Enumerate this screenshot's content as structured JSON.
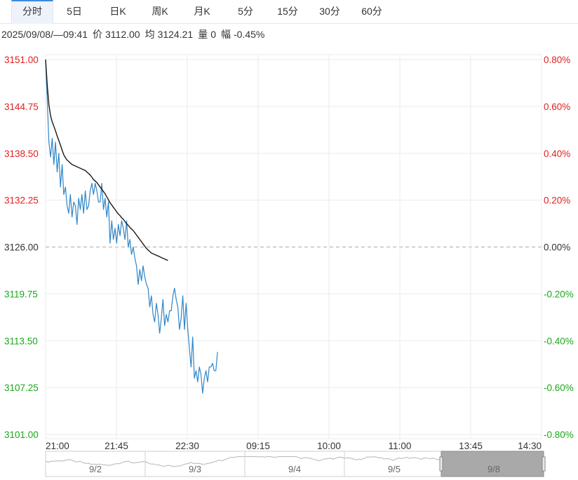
{
  "tabs": [
    {
      "label": "分时",
      "active": true
    },
    {
      "label": "5日",
      "active": false
    },
    {
      "label": "日K",
      "active": false
    },
    {
      "label": "周K",
      "active": false
    },
    {
      "label": "月K",
      "active": false
    },
    {
      "label": "5分",
      "active": false
    },
    {
      "label": "15分",
      "active": false
    },
    {
      "label": "30分",
      "active": false
    },
    {
      "label": "60分",
      "active": false
    }
  ],
  "quote": {
    "datetime": "2025/09/08/—09:41",
    "price_label": "价",
    "price": "3112.00",
    "avg_label": "均",
    "avg": "3124.21",
    "volume_label": "量",
    "volume": "0",
    "change_label": "幅",
    "change": "-0.45%"
  },
  "colors": {
    "up": "#e02020",
    "down": "#1aa81a",
    "neutral": "#333333",
    "price_line": "#2f86c8",
    "avg_line": "#1a1a1a",
    "grid": "#ebebeb",
    "baseline": "#aaaaaa"
  },
  "chart_data": {
    "type": "line",
    "ylim": [
      3101.0,
      3151.0
    ],
    "prev_close": 3126.0,
    "y_ticks": [
      "3151.00",
      "3144.75",
      "3138.50",
      "3132.25",
      "3126.00",
      "3119.75",
      "3113.50",
      "3107.25",
      "3101.00"
    ],
    "y2_ticks": [
      "0.80%",
      "0.60%",
      "0.40%",
      "0.20%",
      "0.00%",
      "-0.20%",
      "-0.40%",
      "-0.60%",
      "-0.80%"
    ],
    "x_ticks": [
      "21:00",
      "21:45",
      "22:30",
      "09:15",
      "10:00",
      "11:00",
      "13:45",
      "14:30"
    ],
    "series": [
      {
        "values": [
          3151.0,
          3145.5,
          3140.0,
          3138.0,
          3140.5,
          3137.0,
          3140.0,
          3136.0,
          3138.5,
          3134.0,
          3137.0,
          3133.0,
          3134.0,
          3131.5,
          3130.5,
          3133.0,
          3130.0,
          3132.0,
          3131.5,
          3129.0,
          3132.5,
          3131.0,
          3133.0,
          3130.5,
          3133.5,
          3131.0,
          3131.5,
          3133.5,
          3134.5,
          3133.0,
          3134.5,
          3133.5,
          3132.0,
          3132.0,
          3134.5,
          3131.0,
          3132.5,
          3130.0,
          3132.0,
          3126.5,
          3129.5,
          3127.0,
          3128.5,
          3126.5,
          3129.0,
          3127.5,
          3129.5,
          3128.5,
          3127.0,
          3129.5,
          3126.0,
          3127.0,
          3125.0,
          3126.0,
          3124.5,
          3123.5,
          3121.0,
          3123.0,
          3121.5,
          3123.5,
          3122.0,
          3121.0,
          3120.5,
          3118.0,
          3119.5,
          3117.0,
          3116.0,
          3118.5,
          3117.0,
          3114.5,
          3116.5,
          3119.0,
          3115.5,
          3117.0,
          3116.0,
          3117.5,
          3117.5,
          3119.5,
          3120.5,
          3119.0,
          3118.0,
          3115.0,
          3116.5,
          3119.5,
          3115.0,
          3118.5,
          3115.0,
          3112.5,
          3110.0,
          3114.0,
          3108.5,
          3109.5,
          3108.0,
          3110.0,
          3109.0,
          3106.5,
          3108.5,
          3109.5,
          3108.0,
          3110.0,
          3110.0,
          3110.5,
          3109.5,
          3109.5,
          3112.0
        ],
        "color": "#2f86c8"
      },
      {
        "values": [
          3151.0,
          3147.5,
          3145.0,
          3143.5,
          3142.7,
          3142.1,
          3141.5,
          3140.8,
          3140.2,
          3139.6,
          3138.9,
          3138.3,
          3137.9,
          3137.6,
          3137.4,
          3137.2,
          3137.0,
          3136.9,
          3136.8,
          3136.7,
          3136.6,
          3136.5,
          3136.4,
          3136.3,
          3136.2,
          3136.0,
          3135.8,
          3135.6,
          3135.3,
          3135.0,
          3134.8,
          3134.6,
          3134.3,
          3134.0,
          3133.7,
          3133.4,
          3133.1,
          3132.7,
          3132.3,
          3131.9,
          3131.6,
          3131.3,
          3131.0,
          3130.7,
          3130.4,
          3130.2,
          3129.9,
          3129.7,
          3129.4,
          3129.1,
          3128.9,
          3128.6,
          3128.4,
          3128.2,
          3127.9,
          3127.6,
          3127.3,
          3127.0,
          3126.7,
          3126.4,
          3126.1,
          3125.8,
          3125.6,
          3125.4,
          3125.2,
          3125.1,
          3125.0,
          3124.9,
          3124.8,
          3124.7,
          3124.6,
          3124.5,
          3124.4,
          3124.3,
          3124.21
        ],
        "color": "#1a1a1a"
      }
    ],
    "grid": true,
    "navigator_labels": [
      "9/2",
      "9/3",
      "9/4",
      "9/5",
      "9/8"
    ]
  }
}
